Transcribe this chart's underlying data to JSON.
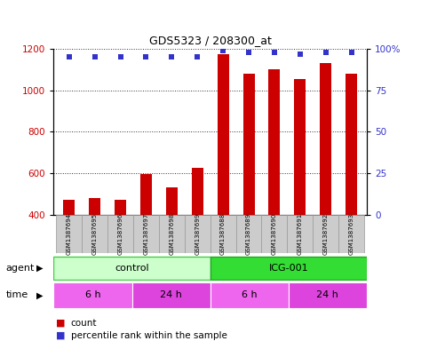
{
  "title": "GDS5323 / 208300_at",
  "samples": [
    "GSM1387694",
    "GSM1387695",
    "GSM1387696",
    "GSM1387697",
    "GSM1387698",
    "GSM1387699",
    "GSM1387688",
    "GSM1387689",
    "GSM1387690",
    "GSM1387691",
    "GSM1387692",
    "GSM1387693"
  ],
  "counts": [
    470,
    480,
    470,
    595,
    530,
    625,
    1175,
    1080,
    1100,
    1055,
    1130,
    1082
  ],
  "percentiles": [
    95,
    95,
    95,
    95,
    95,
    95,
    99,
    98,
    98,
    97,
    98,
    98
  ],
  "ylim_left": [
    400,
    1200
  ],
  "ylim_right": [
    0,
    100
  ],
  "yticks_left": [
    400,
    600,
    800,
    1000,
    1200
  ],
  "yticks_right": [
    0,
    25,
    50,
    75,
    100
  ],
  "ytick_right_labels": [
    "0",
    "25",
    "50",
    "75",
    "100%"
  ],
  "bar_color": "#cc0000",
  "dot_color": "#3333cc",
  "agent_groups": [
    {
      "label": "control",
      "start": 0,
      "end": 6,
      "color": "#ccffcc",
      "border_color": "#44cc44"
    },
    {
      "label": "ICG-001",
      "start": 6,
      "end": 12,
      "color": "#33dd33",
      "border_color": "#22aa22"
    }
  ],
  "time_groups": [
    {
      "label": "6 h",
      "start": 0,
      "end": 3,
      "color": "#ee66ee"
    },
    {
      "label": "24 h",
      "start": 3,
      "end": 6,
      "color": "#dd44dd"
    },
    {
      "label": "6 h",
      "start": 6,
      "end": 9,
      "color": "#ee66ee"
    },
    {
      "label": "24 h",
      "start": 9,
      "end": 12,
      "color": "#dd44dd"
    }
  ],
  "legend_count_color": "#cc0000",
  "legend_dot_color": "#3333cc",
  "bg_color": "#ffffff",
  "grid_color": "#000000",
  "axis_color_left": "#cc0000",
  "axis_color_right": "#3333cc",
  "agent_row_label": "agent",
  "time_row_label": "time",
  "bar_width": 0.45,
  "sample_box_color": "#cccccc",
  "sample_box_edge": "#999999"
}
